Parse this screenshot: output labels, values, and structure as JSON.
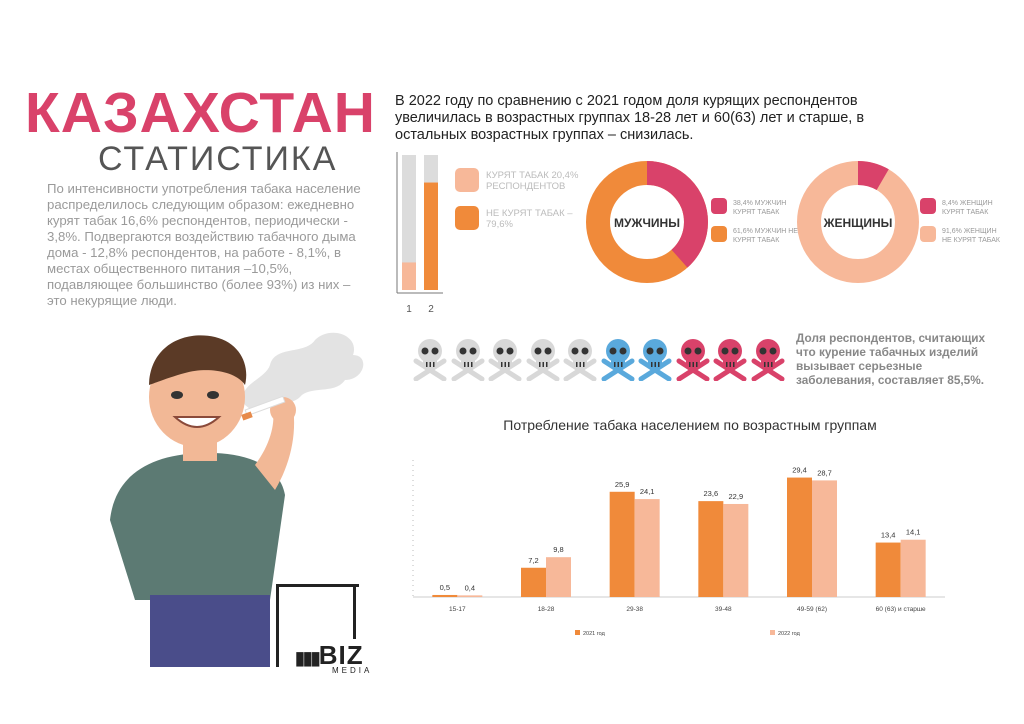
{
  "title": {
    "main": "КАЗАХСТАН",
    "sub": "СТАТИСТИКА"
  },
  "intro": "По интенсивности употребления табака население распределилось следующим образом: ежедневно курят табак 16,6% респондентов, периодически - 3,8%. Подвергаются воздействию табачного дыма дома - 12,8% респондентов, на работе - 8,1%, в местах общественного питания –10,5%, подавляющее большинство  (более 93%) из них – это некурящие люди.",
  "header": "В 2022 году по сравнению с 2021 годом доля курящих респондентов увеличилась в возрастных группах 18-28 лет и 60(63) лет и старше, в остальных возрастных группах – снизилась.",
  "colors": {
    "pink": "#d9426a",
    "orange": "#f08a3a",
    "peach": "#f7b899",
    "gray": "#dcdcdc",
    "skull_gray": "#d8d8d8",
    "skull_blue": "#5aa9dc",
    "skull_red": "#d9426a"
  },
  "bar_legend": {
    "smoke": "КУРЯТ ТАБАК 20,4% РЕСПОНДЕНТОВ",
    "nosmoke": "НЕ КУРЯТ ТАБАК – 79,6%",
    "bar1_label": "1",
    "bar2_label": "2",
    "bar1_fraction": 0.204,
    "bar2_fraction": 0.796
  },
  "donut_men": {
    "label": "МУЖЧИНЫ",
    "smoke_fraction": 0.384,
    "smoke": "38,4% МУЖЧИН КУРЯТ ТАБАК",
    "nosmoke": "61,6% МУЖЧИН НЕ КУРЯТ ТАБАК"
  },
  "donut_women": {
    "label": "ЖЕНЩИНЫ",
    "smoke_fraction": 0.084,
    "smoke": "8,4% ЖЕНЩИН КУРЯТ ТАБАК",
    "nosmoke": "91,6% ЖЕНЩИН НЕ КУРЯТ ТАБАК"
  },
  "skulls": [
    "gray",
    "gray",
    "gray",
    "gray",
    "gray",
    "blue",
    "blue",
    "red",
    "red",
    "red"
  ],
  "skull_caption": "Доля респондентов, считающих что курение табачных изделий вызывает серьезные заболевания, составляет 85,5%.",
  "logo": {
    "brand": "BIZ",
    "tagline": "MEDIA"
  },
  "chart_data": {
    "type": "bar",
    "title": "Потребление табака населением по возрастным группам",
    "categories": [
      "15-17",
      "18-28",
      "29-38",
      "39-48",
      "49-59 (62)",
      "60 (63) и старше"
    ],
    "series": [
      {
        "name": "2021 год",
        "values": [
          0.5,
          7.2,
          25.9,
          23.6,
          29.4,
          13.4
        ],
        "labels": [
          "0,5",
          "7,2",
          "25,9",
          "23,6",
          "29,4",
          "13,4"
        ]
      },
      {
        "name": "2022 год",
        "values": [
          0.4,
          9.8,
          24.1,
          22.9,
          28.7,
          14.1
        ],
        "labels": [
          "0,4",
          "9,8",
          "24,1",
          "22,9",
          "28,7",
          "14,1"
        ]
      }
    ],
    "ylim": [
      0,
      32
    ],
    "xlabel": "",
    "ylabel": "",
    "legend": "bottom"
  }
}
